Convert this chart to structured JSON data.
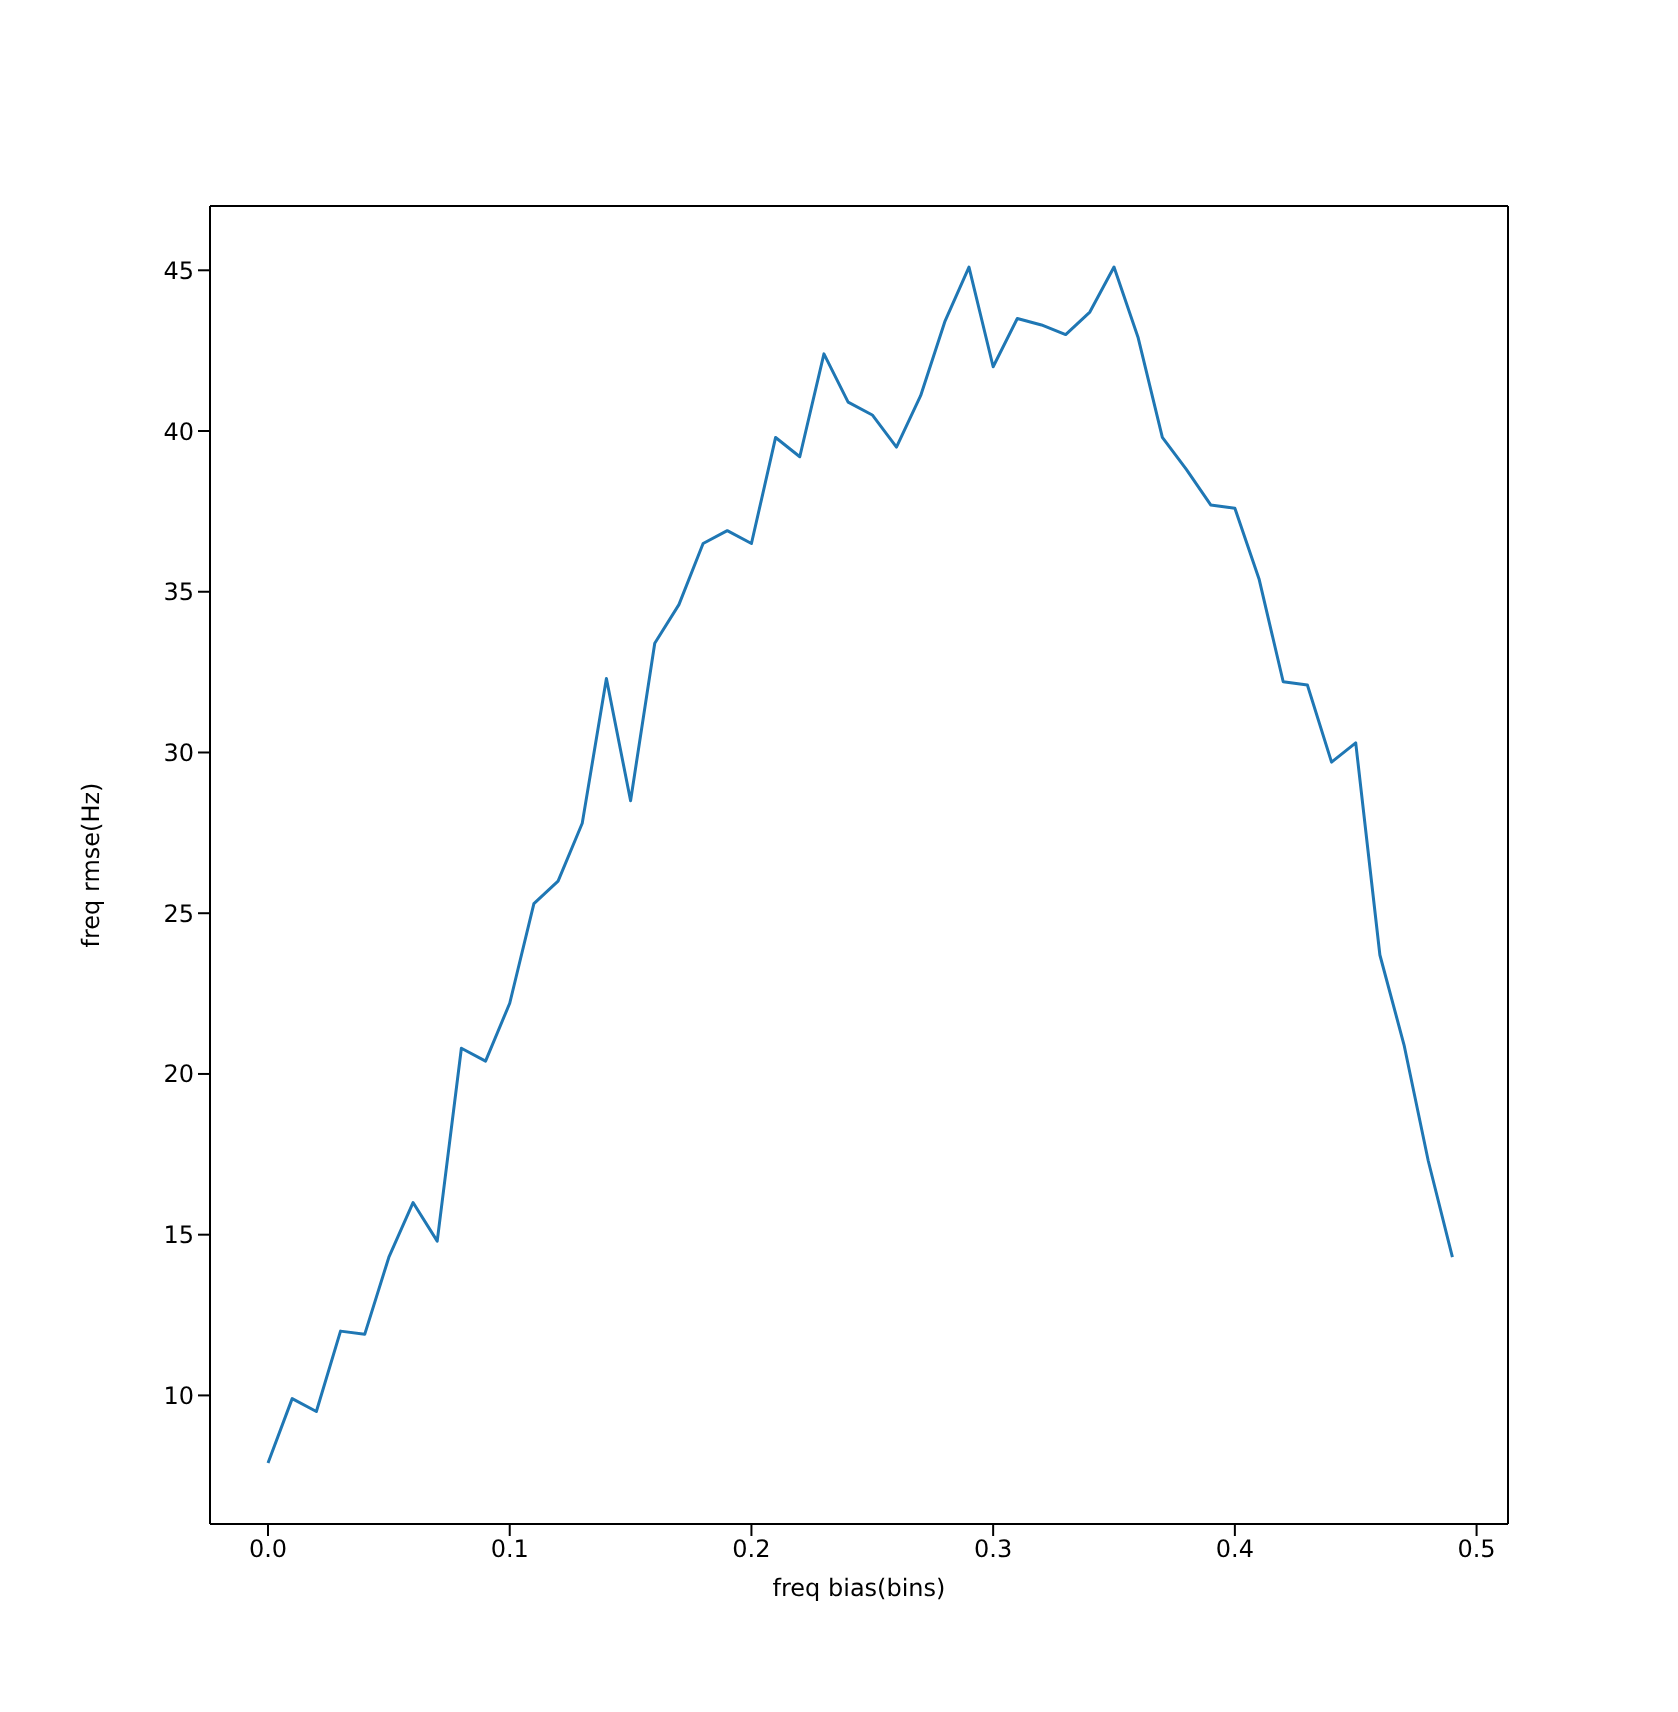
{
  "chart_data": {
    "type": "line",
    "xlabel": "freq bias(bins)",
    "ylabel": "freq rmse(Hz)",
    "x": [
      0,
      0.01,
      0.02,
      0.03,
      0.04,
      0.05,
      0.06,
      0.07,
      0.08,
      0.09,
      0.1,
      0.11,
      0.12,
      0.13,
      0.14,
      0.15,
      0.16,
      0.17,
      0.18,
      0.19,
      0.2,
      0.21,
      0.22,
      0.23,
      0.24,
      0.25,
      0.26,
      0.27,
      0.28,
      0.29,
      0.3,
      0.31,
      0.32,
      0.33,
      0.34,
      0.35,
      0.36,
      0.37,
      0.38,
      0.39,
      0.4,
      0.41,
      0.42,
      0.43,
      0.44,
      0.45,
      0.46,
      0.47,
      0.48,
      0.49
    ],
    "series": [
      {
        "color": "#1f77b4",
        "values": [
          7.9,
          9.9,
          9.5,
          12.0,
          11.9,
          14.3,
          16.0,
          14.8,
          20.8,
          20.4,
          22.2,
          25.3,
          26.0,
          27.8,
          32.3,
          28.5,
          33.4,
          34.6,
          36.5,
          36.9,
          36.5,
          39.8,
          39.2,
          42.4,
          40.9,
          40.5,
          39.5,
          41.1,
          43.4,
          45.1,
          42.0,
          43.5,
          43.3,
          43.0,
          43.7,
          45.1,
          42.9,
          39.8,
          38.8,
          37.7,
          37.6,
          35.4,
          32.2,
          32.1,
          29.7,
          30.3,
          23.7,
          20.9,
          17.3,
          14.3
        ]
      }
    ],
    "xlim": [
      -0.024,
      0.513
    ],
    "xticks": [
      {
        "value": 0,
        "label": "0.0"
      },
      {
        "value": 0.1,
        "label": "0.1"
      },
      {
        "value": 0.2,
        "label": "0.2"
      },
      {
        "value": 0.3,
        "label": "0.3"
      },
      {
        "value": 0.4,
        "label": "0.4"
      },
      {
        "value": 0.5,
        "label": "0.5"
      }
    ],
    "ylim": [
      6.0,
      47.0
    ],
    "yticks": [
      10,
      15,
      20,
      25,
      30,
      35,
      40,
      45
    ],
    "line_style": "solid"
  }
}
